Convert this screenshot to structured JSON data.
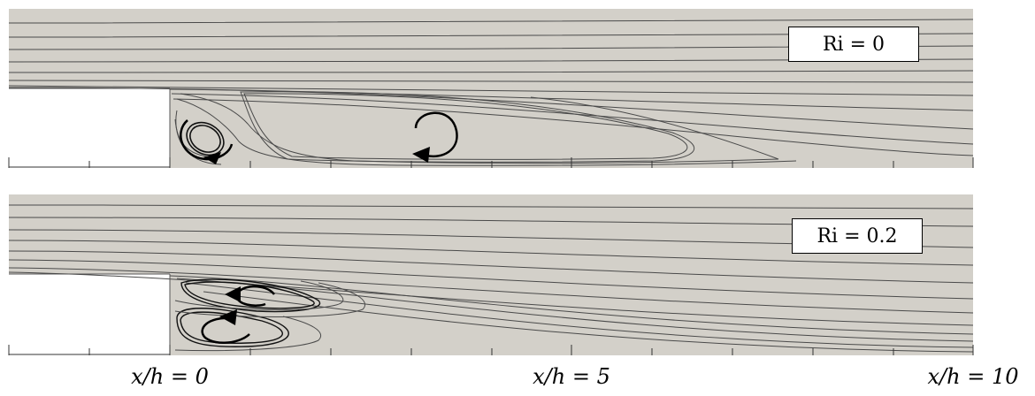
{
  "panels": [
    {
      "label": "Ri = 0"
    },
    {
      "label": "Ri = 0.2"
    }
  ],
  "x_axis": {
    "labels": [
      {
        "value": 0,
        "text": "x/h = 0"
      },
      {
        "value": 5,
        "text": "x/h = 5"
      },
      {
        "value": 10,
        "text": "x/h = 10"
      }
    ]
  },
  "colors": {
    "fluid": "#d3d0c9",
    "streamline": "#4a4a4a",
    "arrow": "#000000",
    "step": "#ffffff"
  }
}
